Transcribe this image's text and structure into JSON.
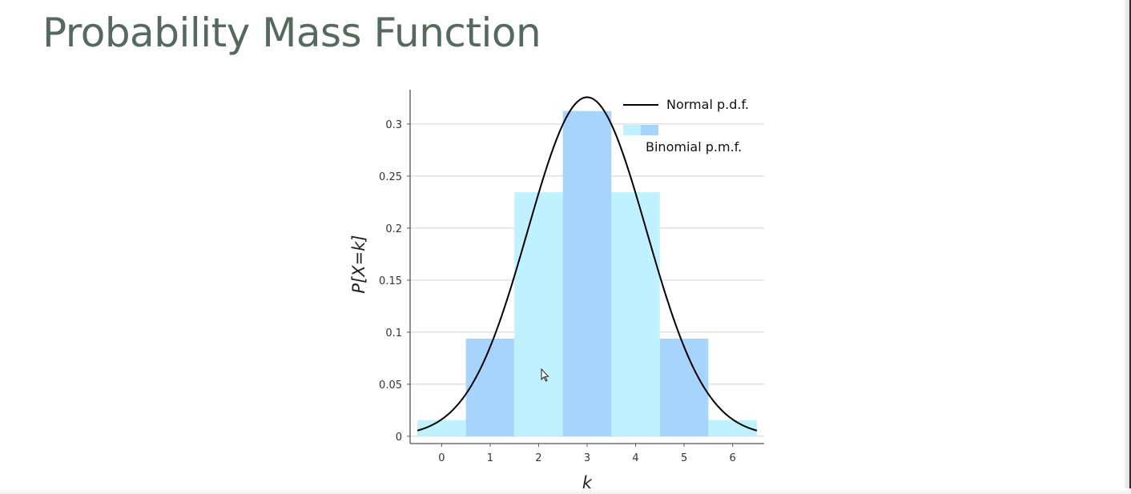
{
  "slide": {
    "title": "Probability Mass Function"
  },
  "chart_data": {
    "type": "bar",
    "xlabel": "k",
    "ylabel": "P[X=k]",
    "categories": [
      0,
      1,
      2,
      3,
      4,
      5,
      6
    ],
    "x_ticks": [
      "0",
      "1",
      "2",
      "3",
      "4",
      "5",
      "6"
    ],
    "y_ticks": [
      "0",
      "0.05",
      "0.1",
      "0.15",
      "0.2",
      "0.25",
      "0.3"
    ],
    "xlim": [
      -0.65,
      6.65
    ],
    "ylim": [
      -0.007,
      0.333
    ],
    "grid": {
      "horizontal": true,
      "vertical": false
    },
    "series": [
      {
        "name": "Binomial p.m.f.",
        "values": [
          0.0156,
          0.0938,
          0.2344,
          0.3125,
          0.2344,
          0.0938,
          0.0156
        ]
      },
      {
        "name": "Normal p.d.f.",
        "type": "line",
        "function": "normal",
        "mean": 3,
        "sd": 1.2247
      }
    ],
    "legend": {
      "position": "top-right",
      "items": [
        {
          "label": "Normal p.d.f.",
          "kind": "line"
        },
        {
          "label": "Binomial p.m.f.",
          "kind": "bar"
        }
      ]
    },
    "colors": {
      "bar_light": "#c0f1fe",
      "bar_dark": "#a6d4fb",
      "curve": "#000000",
      "grid": "#d0d0d0",
      "axis": "#555555"
    }
  }
}
